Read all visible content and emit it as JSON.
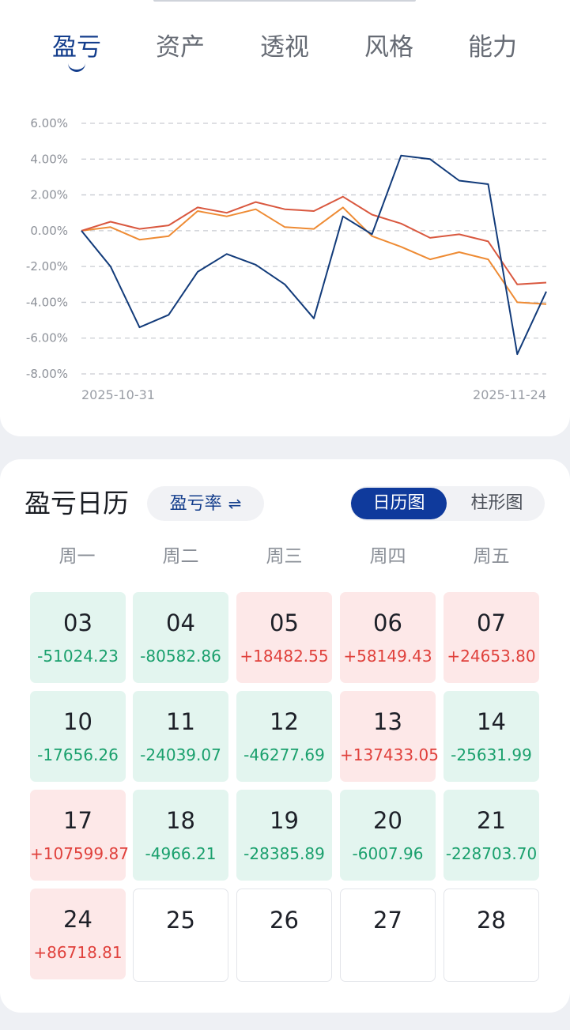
{
  "tabs": [
    {
      "label": "盈亏",
      "active": true
    },
    {
      "label": "资产",
      "active": false
    },
    {
      "label": "透视",
      "active": false
    },
    {
      "label": "风格",
      "active": false
    },
    {
      "label": "能力",
      "active": false
    }
  ],
  "chart_data": {
    "type": "line",
    "y_ticks": [
      "6.00%",
      "4.00%",
      "2.00%",
      "0.00%",
      "-2.00%",
      "-4.00%",
      "-6.00%",
      "-8.00%"
    ],
    "ylim": [
      -8,
      6
    ],
    "grid": true,
    "x_labels_shown": [
      "2025-10-31",
      "2025-11-24"
    ],
    "x": [
      "2025-10-31",
      "2025-11-03",
      "2025-11-04",
      "2025-11-05",
      "2025-11-06",
      "2025-11-07",
      "2025-11-10",
      "2025-11-11",
      "2025-11-12",
      "2025-11-13",
      "2025-11-14",
      "2025-11-17",
      "2025-11-18",
      "2025-11-19",
      "2025-11-20",
      "2025-11-21",
      "2025-11-24"
    ],
    "series": [
      {
        "color": "#123b7a",
        "values": [
          0.0,
          -2.0,
          -5.4,
          -4.7,
          -2.3,
          -1.3,
          -1.9,
          -3.0,
          -4.9,
          0.8,
          -0.2,
          4.2,
          4.0,
          2.8,
          2.6,
          -6.9,
          -3.4
        ]
      },
      {
        "color": "#d9583f",
        "values": [
          0.0,
          0.5,
          0.1,
          0.3,
          1.3,
          1.0,
          1.6,
          1.2,
          1.1,
          1.9,
          0.9,
          0.4,
          -0.4,
          -0.2,
          -0.6,
          -3.0,
          -2.9
        ]
      },
      {
        "color": "#ee8b34",
        "values": [
          0.0,
          0.2,
          -0.5,
          -0.3,
          1.1,
          0.8,
          1.2,
          0.2,
          0.1,
          1.3,
          -0.3,
          -0.9,
          -1.6,
          -1.2,
          -1.6,
          -4.0,
          -4.1
        ]
      }
    ]
  },
  "calendar": {
    "title": "盈亏日历",
    "metric_label": "盈亏率",
    "metric_swap_icon": "⇌",
    "view_options": [
      {
        "label": "日历图",
        "active": true
      },
      {
        "label": "柱形图",
        "active": false
      }
    ],
    "weekdays": [
      "周一",
      "周二",
      "周三",
      "周四",
      "周五"
    ],
    "weeks": [
      [
        {
          "day": "03",
          "pnl": "-51024.23",
          "type": "loss"
        },
        {
          "day": "04",
          "pnl": "-80582.86",
          "type": "loss"
        },
        {
          "day": "05",
          "pnl": "+18482.55",
          "type": "gain"
        },
        {
          "day": "06",
          "pnl": "+58149.43",
          "type": "gain"
        },
        {
          "day": "07",
          "pnl": "+24653.80",
          "type": "gain"
        }
      ],
      [
        {
          "day": "10",
          "pnl": "-17656.26",
          "type": "loss"
        },
        {
          "day": "11",
          "pnl": "-24039.07",
          "type": "loss"
        },
        {
          "day": "12",
          "pnl": "-46277.69",
          "type": "loss"
        },
        {
          "day": "13",
          "pnl": "+137433.05",
          "type": "gain"
        },
        {
          "day": "14",
          "pnl": "-25631.99",
          "type": "loss"
        }
      ],
      [
        {
          "day": "17",
          "pnl": "+107599.87",
          "type": "gain"
        },
        {
          "day": "18",
          "pnl": "-4966.21",
          "type": "loss"
        },
        {
          "day": "19",
          "pnl": "-28385.89",
          "type": "loss"
        },
        {
          "day": "20",
          "pnl": "-6007.96",
          "type": "loss"
        },
        {
          "day": "21",
          "pnl": "-228703.70",
          "type": "loss"
        }
      ],
      [
        {
          "day": "24",
          "pnl": "+86718.81",
          "type": "gain"
        },
        {
          "day": "25",
          "pnl": "",
          "type": "empty"
        },
        {
          "day": "26",
          "pnl": "",
          "type": "empty"
        },
        {
          "day": "27",
          "pnl": "",
          "type": "empty"
        },
        {
          "day": "28",
          "pnl": "",
          "type": "empty"
        }
      ]
    ]
  }
}
